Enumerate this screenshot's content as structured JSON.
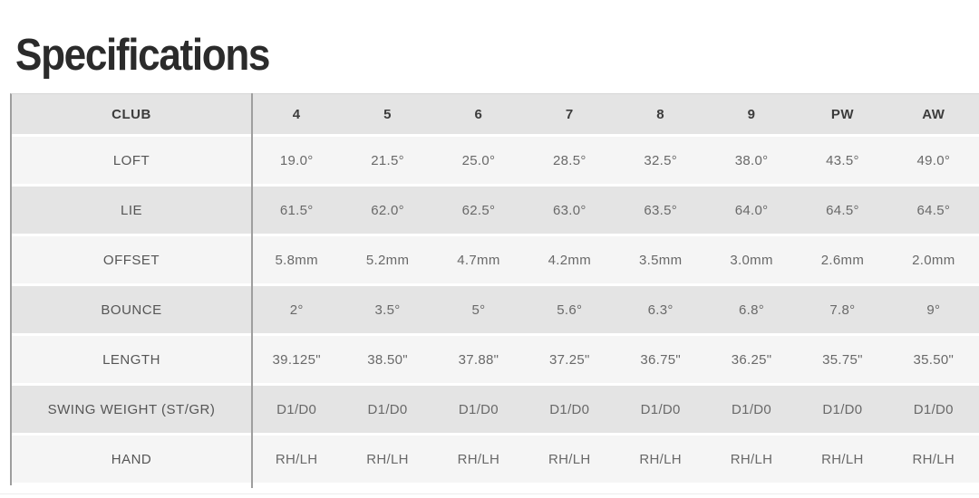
{
  "page": {
    "title": "Specifications"
  },
  "colors": {
    "title_text": "#2b2b2b",
    "header_text": "#3c3c3c",
    "label_text": "#555555",
    "value_text": "#696969",
    "row_gray": "#e4e4e4",
    "row_light": "#f5f5f5",
    "line_gray": "#9e9e9e"
  },
  "table": {
    "header": [
      "CLUB",
      "4",
      "5",
      "6",
      "7",
      "8",
      "9",
      "PW",
      "AW"
    ],
    "rows": [
      {
        "label": "LOFT",
        "values": [
          "19.0°",
          "21.5°",
          "25.0°",
          "28.5°",
          "32.5°",
          "38.0°",
          "43.5°",
          "49.0°"
        ]
      },
      {
        "label": "LIE",
        "values": [
          "61.5°",
          "62.0°",
          "62.5°",
          "63.0°",
          "63.5°",
          "64.0°",
          "64.5°",
          "64.5°"
        ]
      },
      {
        "label": "OFFSET",
        "values": [
          "5.8mm",
          "5.2mm",
          "4.7mm",
          "4.2mm",
          "3.5mm",
          "3.0mm",
          "2.6mm",
          "2.0mm"
        ]
      },
      {
        "label": "BOUNCE",
        "values": [
          "2°",
          "3.5°",
          "5°",
          "5.6°",
          "6.3°",
          "6.8°",
          "7.8°",
          "9°"
        ]
      },
      {
        "label": "LENGTH",
        "values": [
          "39.125\"",
          "38.50\"",
          "37.88\"",
          "37.25\"",
          "36.75\"",
          "36.25\"",
          "35.75\"",
          "35.50\""
        ]
      },
      {
        "label": "SWING WEIGHT (ST/GR)",
        "values": [
          "D1/D0",
          "D1/D0",
          "D1/D0",
          "D1/D0",
          "D1/D0",
          "D1/D0",
          "D1/D0",
          "D1/D0"
        ]
      },
      {
        "label": "HAND",
        "values": [
          "RH/LH",
          "RH/LH",
          "RH/LH",
          "RH/LH",
          "RH/LH",
          "RH/LH",
          "RH/LH",
          "RH/LH"
        ]
      }
    ]
  }
}
